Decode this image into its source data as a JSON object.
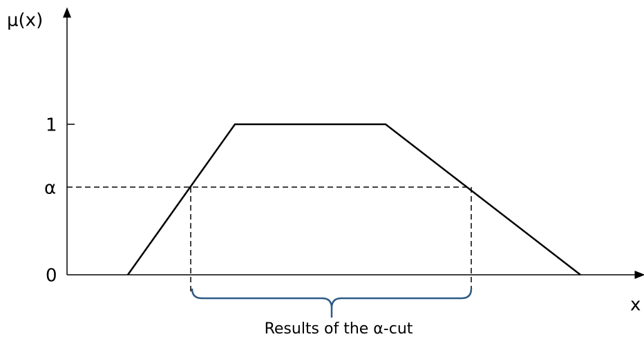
{
  "axes": {
    "y_label": "μ(x)",
    "x_label": "x",
    "y_ticks": [
      "1",
      "α",
      "0"
    ]
  },
  "annotation": "Results of the α-cut"
}
